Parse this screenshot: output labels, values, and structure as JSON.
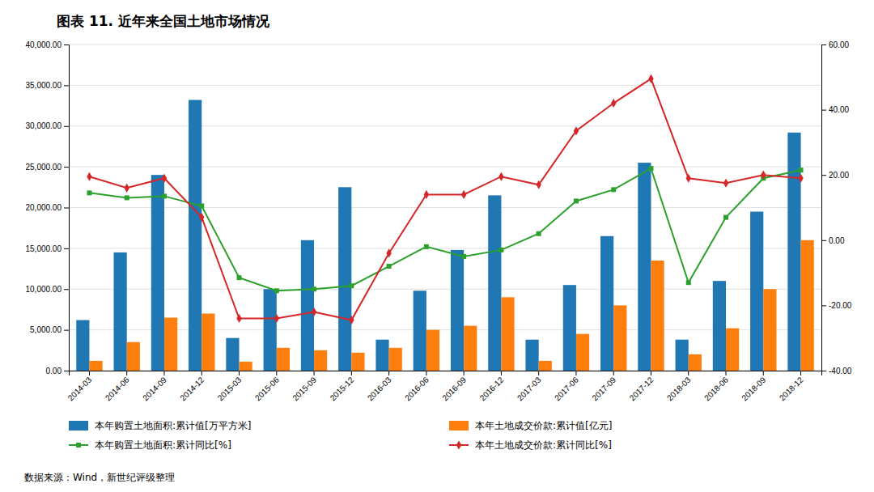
{
  "chart_data": {
    "type": "bar",
    "title": "图表 11.   近年来全国土地市场情况",
    "annotations": [
      "数据来源：Wind，新世纪评级整理"
    ],
    "categories": [
      "2014-03",
      "2014-06",
      "2014-09",
      "2014-12",
      "2015-03",
      "2015-06",
      "2015-09",
      "2015-12",
      "2016-03",
      "2016-06",
      "2016-09",
      "2016-12",
      "2017-03",
      "2017-06",
      "2017-09",
      "2017-12",
      "2018-03",
      "2018-06",
      "2018-09",
      "2018-12"
    ],
    "series": [
      {
        "name": "本年购置土地面积:累计值[万平方米]",
        "type": "bar",
        "values": [
          6200,
          14500,
          24000,
          33200,
          4000,
          10000,
          16000,
          22500,
          3800,
          9800,
          14800,
          21500,
          3800,
          10500,
          16500,
          25500,
          3800,
          11000,
          19500,
          29200
        ]
      },
      {
        "name": "本年土地成交价款:累计值[亿元]",
        "type": "bar",
        "values": [
          1200,
          3500,
          6500,
          7000,
          1100,
          2800,
          2500,
          2200,
          2800,
          5000,
          5500,
          9000,
          1200,
          4500,
          8000,
          13500,
          2000,
          5200,
          10000,
          16000
        ]
      },
      {
        "name": "本年购置土地面积:累计同比[%]",
        "type": "line",
        "axis": "y2",
        "marker": "square",
        "values": [
          14.5,
          13.0,
          13.5,
          10.5,
          -11.5,
          -15.5,
          -15.0,
          -14.0,
          -8.0,
          -2.0,
          -5.0,
          -3.0,
          2.0,
          12.0,
          15.5,
          22.0,
          -13.0,
          7.0,
          19.0,
          21.5
        ]
      },
      {
        "name": "本年土地成交价款:累计同比[%]",
        "type": "line",
        "axis": "y2",
        "marker": "diamond",
        "values": [
          19.5,
          16.0,
          19.0,
          7.0,
          -24.0,
          -24.0,
          -22.0,
          -24.5,
          -4.0,
          14.0,
          14.0,
          19.5,
          17.0,
          33.5,
          42.0,
          49.5,
          19.0,
          17.5,
          20.0,
          19.0
        ]
      }
    ],
    "ylim": [
      0,
      40000
    ],
    "yticks": [
      {
        "value": 0,
        "label": "0.00"
      },
      {
        "value": 5000,
        "label": "5,000.00"
      },
      {
        "value": 10000,
        "label": "10,000.00"
      },
      {
        "value": 15000,
        "label": "15,000.00"
      },
      {
        "value": 20000,
        "label": "20,000.00"
      },
      {
        "value": 25000,
        "label": "25,000.00"
      },
      {
        "value": 30000,
        "label": "30,000.00"
      },
      {
        "value": 35000,
        "label": "35,000.00"
      },
      {
        "value": 40000,
        "label": "40,000.00"
      }
    ],
    "y2lim": [
      -40,
      60
    ],
    "y2ticks": [
      {
        "value": -40,
        "label": "-40.00"
      },
      {
        "value": -20,
        "label": "-20.00"
      },
      {
        "value": 0,
        "label": "0.00"
      },
      {
        "value": 20,
        "label": "20.00"
      },
      {
        "value": 40,
        "label": "40.00"
      },
      {
        "value": 60,
        "label": "60.00"
      }
    ],
    "grid": true,
    "legend": "bottom"
  }
}
